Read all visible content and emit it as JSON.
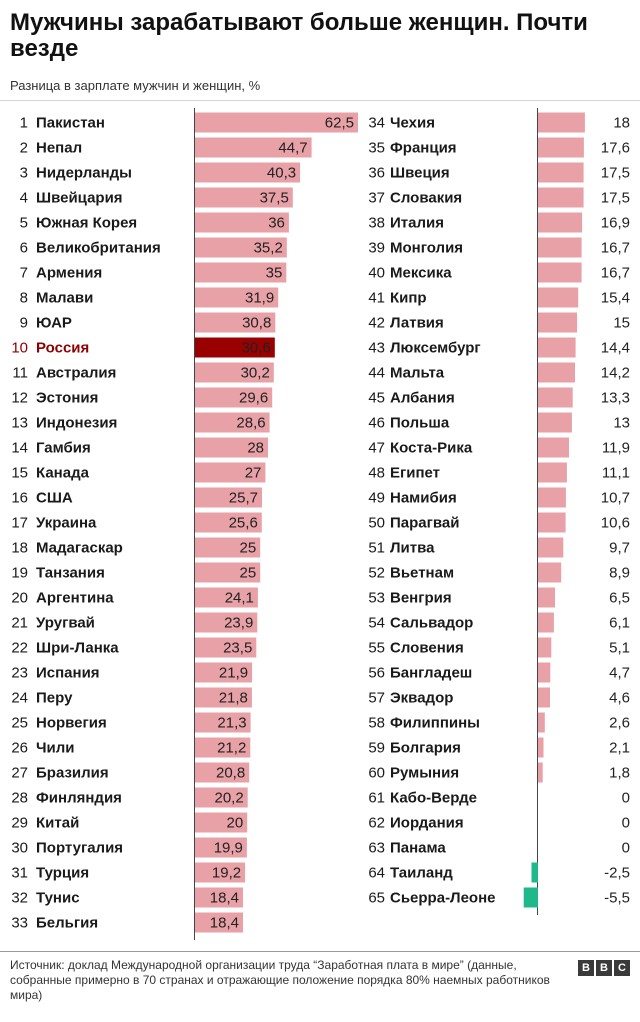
{
  "title": "Мужчины зарабатывают больше женщин. Почти везде",
  "subtitle": "Разница в зарплате мужчин и женщин, %",
  "footer": "Источник: доклад  Международной организации труда “Заработная плата в мире” (данные, собранные примерно в 70 странах и отражающие положение порядка 80% наемных работников мира)",
  "logo": [
    "B",
    "B",
    "C"
  ],
  "colors": {
    "bar": "#e8a1a6",
    "highlight": "#990000",
    "negative": "#1fb88a",
    "highlight_text": "#8b0000"
  },
  "chart_data": {
    "type": "bar",
    "orientation": "horizontal",
    "highlight": "Россия",
    "columns": [
      {
        "ranks": [
          "1",
          "2",
          "3",
          "4",
          "5",
          "6",
          "7",
          "8",
          "9",
          "10",
          "11",
          "12",
          "13",
          "14",
          "15",
          "16",
          "17",
          "18",
          "19",
          "20",
          "21",
          "22",
          "23",
          "24",
          "25",
          "26",
          "27",
          "28",
          "29",
          "30",
          "31",
          "32",
          "33"
        ],
        "categories": [
          "Пакистан",
          "Непал",
          "Нидерланды",
          "Швейцария",
          "Южная Корея",
          "Великобритания",
          "Армения",
          "Малави",
          "ЮАР",
          "Россия",
          "Австралия",
          "Эстония",
          "Индонезия",
          "Гамбия",
          "Канада",
          "США",
          "Украина",
          "Мадагаскар",
          "Танзания",
          "Аргентина",
          "Уругвай",
          "Шри-Ланка",
          "Испания",
          "Перу",
          "Норвегия",
          "Чили",
          "Бразилия",
          "Финляндия",
          "Китай",
          "Португалия",
          "Турция",
          "Тунис",
          "Бельгия"
        ],
        "values": [
          62.5,
          44.7,
          40.3,
          37.5,
          36,
          35.2,
          35,
          31.9,
          30.8,
          30.6,
          30.2,
          29.6,
          28.6,
          28,
          27,
          25.7,
          25.6,
          25,
          25,
          24.1,
          23.9,
          23.5,
          21.9,
          21.8,
          21.3,
          21.2,
          20.8,
          20.2,
          20,
          19.9,
          19.2,
          18.4,
          18.4
        ],
        "labels": [
          "62,5",
          "44,7",
          "40,3",
          "37,5",
          "36",
          "35,2",
          "35",
          "31,9",
          "30,8",
          "30,6",
          "30,2",
          "29,6",
          "28,6",
          "28",
          "27",
          "25,7",
          "25,6",
          "25",
          "25",
          "24,1",
          "23,9",
          "23,5",
          "21,9",
          "21,8",
          "21,3",
          "21,2",
          "20,8",
          "20,2",
          "20",
          "19,9",
          "19,2",
          "18,4",
          "18,4"
        ]
      },
      {
        "ranks": [
          "34",
          "35",
          "36",
          "37",
          "38",
          "39",
          "40",
          "41",
          "42",
          "43",
          "44",
          "45",
          "46",
          "47",
          "48",
          "49",
          "50",
          "51",
          "52",
          "53",
          "54",
          "55",
          "56",
          "57",
          "58",
          "59",
          "60",
          "61",
          "62",
          "63",
          "64",
          "65"
        ],
        "categories": [
          "Чехия",
          "Франция",
          "Швеция",
          "Словакия",
          "Италия",
          "Монголия",
          "Мексика",
          "Кипр",
          "Латвия",
          "Люксембург",
          "Мальта",
          "Албания",
          "Польша",
          "Коста-Рика",
          "Египет",
          "Намибия",
          "Парагвай",
          "Литва",
          "Вьетнам",
          "Венгрия",
          "Сальвадор",
          "Словения",
          "Бангладеш",
          "Эквадор",
          "Филиппины",
          "Болгария",
          "Румыния",
          "Кабо-Верде",
          "Иордания",
          "Панама",
          "Таиланд",
          "Сьерра-Леоне"
        ],
        "values": [
          18,
          17.6,
          17.5,
          17.5,
          16.9,
          16.7,
          16.7,
          15.4,
          15,
          14.4,
          14.2,
          13.3,
          13,
          11.9,
          11.1,
          10.7,
          10.6,
          9.7,
          8.9,
          6.5,
          6.1,
          5.1,
          4.7,
          4.6,
          2.6,
          2.1,
          1.8,
          0,
          0,
          0,
          -2.5,
          -5.5
        ],
        "labels": [
          "18",
          "17,6",
          "17,5",
          "17,5",
          "16,9",
          "16,7",
          "16,7",
          "15,4",
          "15",
          "14,4",
          "14,2",
          "13,3",
          "13",
          "11,9",
          "11,1",
          "10,7",
          "10,6",
          "9,7",
          "8,9",
          "6,5",
          "6,1",
          "5,1",
          "4,7",
          "4,6",
          "2,6",
          "2,1",
          "1,8",
          "0",
          "0",
          "0",
          "-2,5",
          "-5,5"
        ]
      }
    ]
  }
}
